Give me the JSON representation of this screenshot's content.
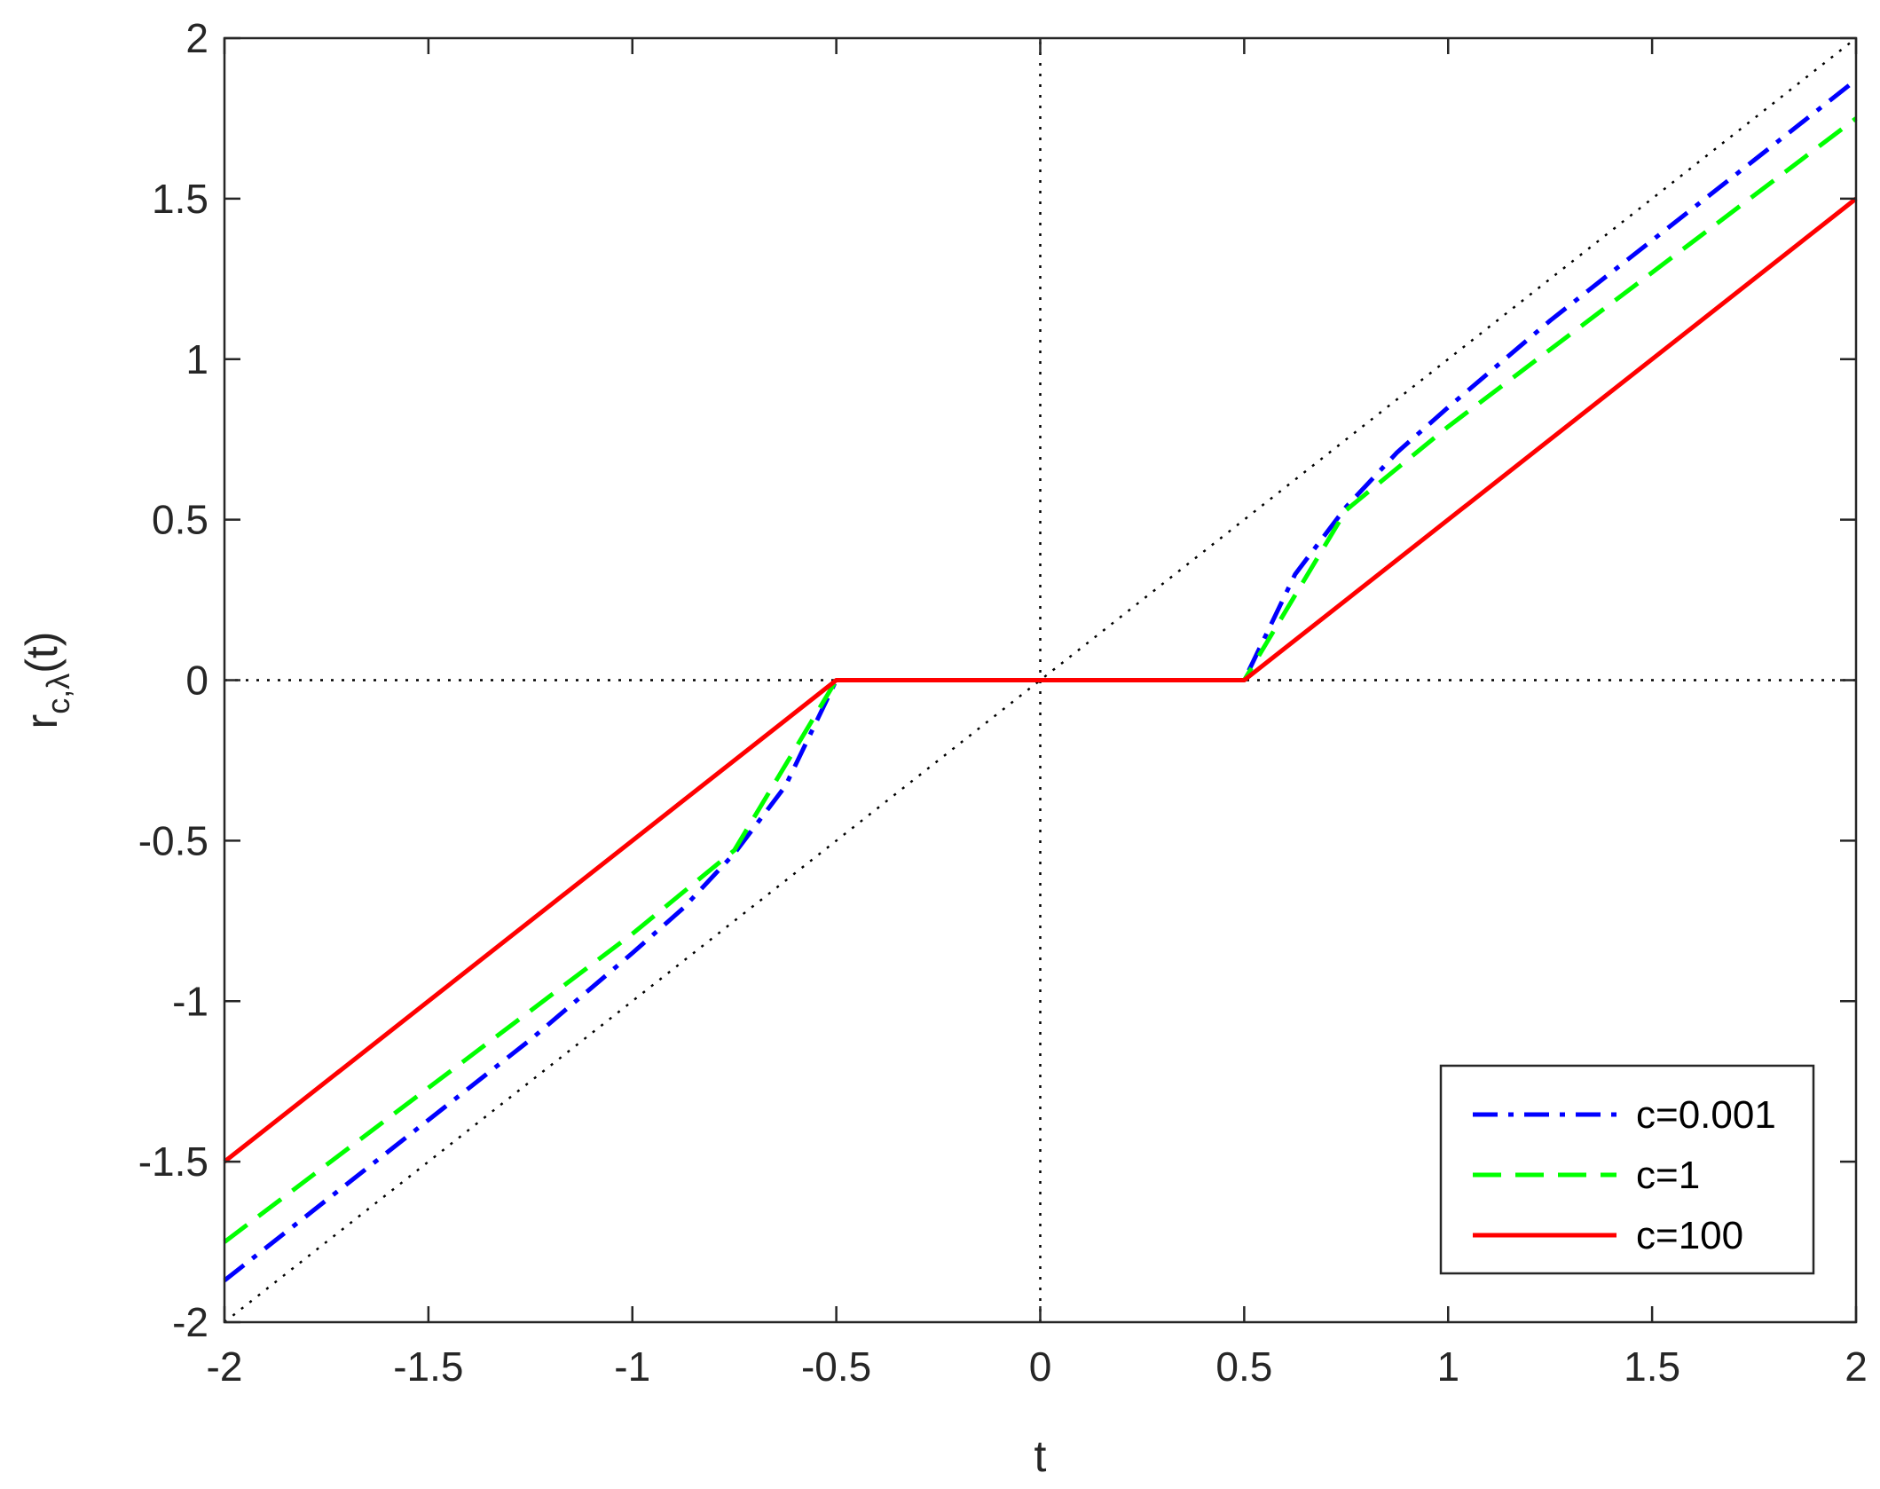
{
  "chart_data": {
    "type": "line",
    "title": "",
    "xlabel": "t",
    "ylabel_main": "r",
    "ylabel_sub": "c,λ",
    "ylabel_tail": "(t)",
    "xlim": [
      -2,
      2
    ],
    "ylim": [
      -2,
      2
    ],
    "xticks": [
      -2,
      -1.5,
      -1,
      -0.5,
      0,
      0.5,
      1,
      1.5,
      2
    ],
    "yticks": [
      -2,
      -1.5,
      -1,
      -0.5,
      0,
      0.5,
      1,
      1.5,
      2
    ],
    "grid": false,
    "legend_position": "bottom-right",
    "reference_lines": [
      {
        "kind": "identity",
        "style": "dotted",
        "color": "#000000",
        "x": [
          -2,
          2
        ],
        "y": [
          -2,
          2
        ]
      },
      {
        "kind": "horizontal",
        "style": "dotted",
        "color": "#000000",
        "x": [
          -2,
          2
        ],
        "y": [
          0,
          0
        ]
      },
      {
        "kind": "vertical",
        "style": "dotted",
        "color": "#000000",
        "x": [
          0,
          0
        ],
        "y": [
          -2,
          2
        ]
      }
    ],
    "series": [
      {
        "name": "c=0.001",
        "color": "#0000ff",
        "style": "dashdot",
        "x": [
          -2,
          -1.75,
          -1.5,
          -1.25,
          -1,
          -0.875,
          -0.75,
          -0.625,
          -0.5,
          0.5,
          0.625,
          0.75,
          0.875,
          1,
          1.25,
          1.5,
          1.75,
          2
        ],
        "y": [
          -1.87,
          -1.62,
          -1.37,
          -1.12,
          -0.85,
          -0.71,
          -0.54,
          -0.33,
          0,
          0,
          0.33,
          0.54,
          0.71,
          0.85,
          1.12,
          1.37,
          1.62,
          1.87
        ]
      },
      {
        "name": "c=1",
        "color": "#00ff00",
        "style": "dashed",
        "x": [
          -2,
          -1.5,
          -1,
          -0.75,
          -0.5,
          0.5,
          0.75,
          1,
          1.5,
          2
        ],
        "y": [
          -1.75,
          -1.27,
          -0.79,
          -0.53,
          0,
          0,
          0.53,
          0.79,
          1.27,
          1.75
        ]
      },
      {
        "name": "c=100",
        "color": "#ff0000",
        "style": "solid",
        "x": [
          -2,
          -0.5,
          0.5,
          2
        ],
        "y": [
          -1.5,
          0,
          0,
          1.5
        ]
      }
    ]
  }
}
